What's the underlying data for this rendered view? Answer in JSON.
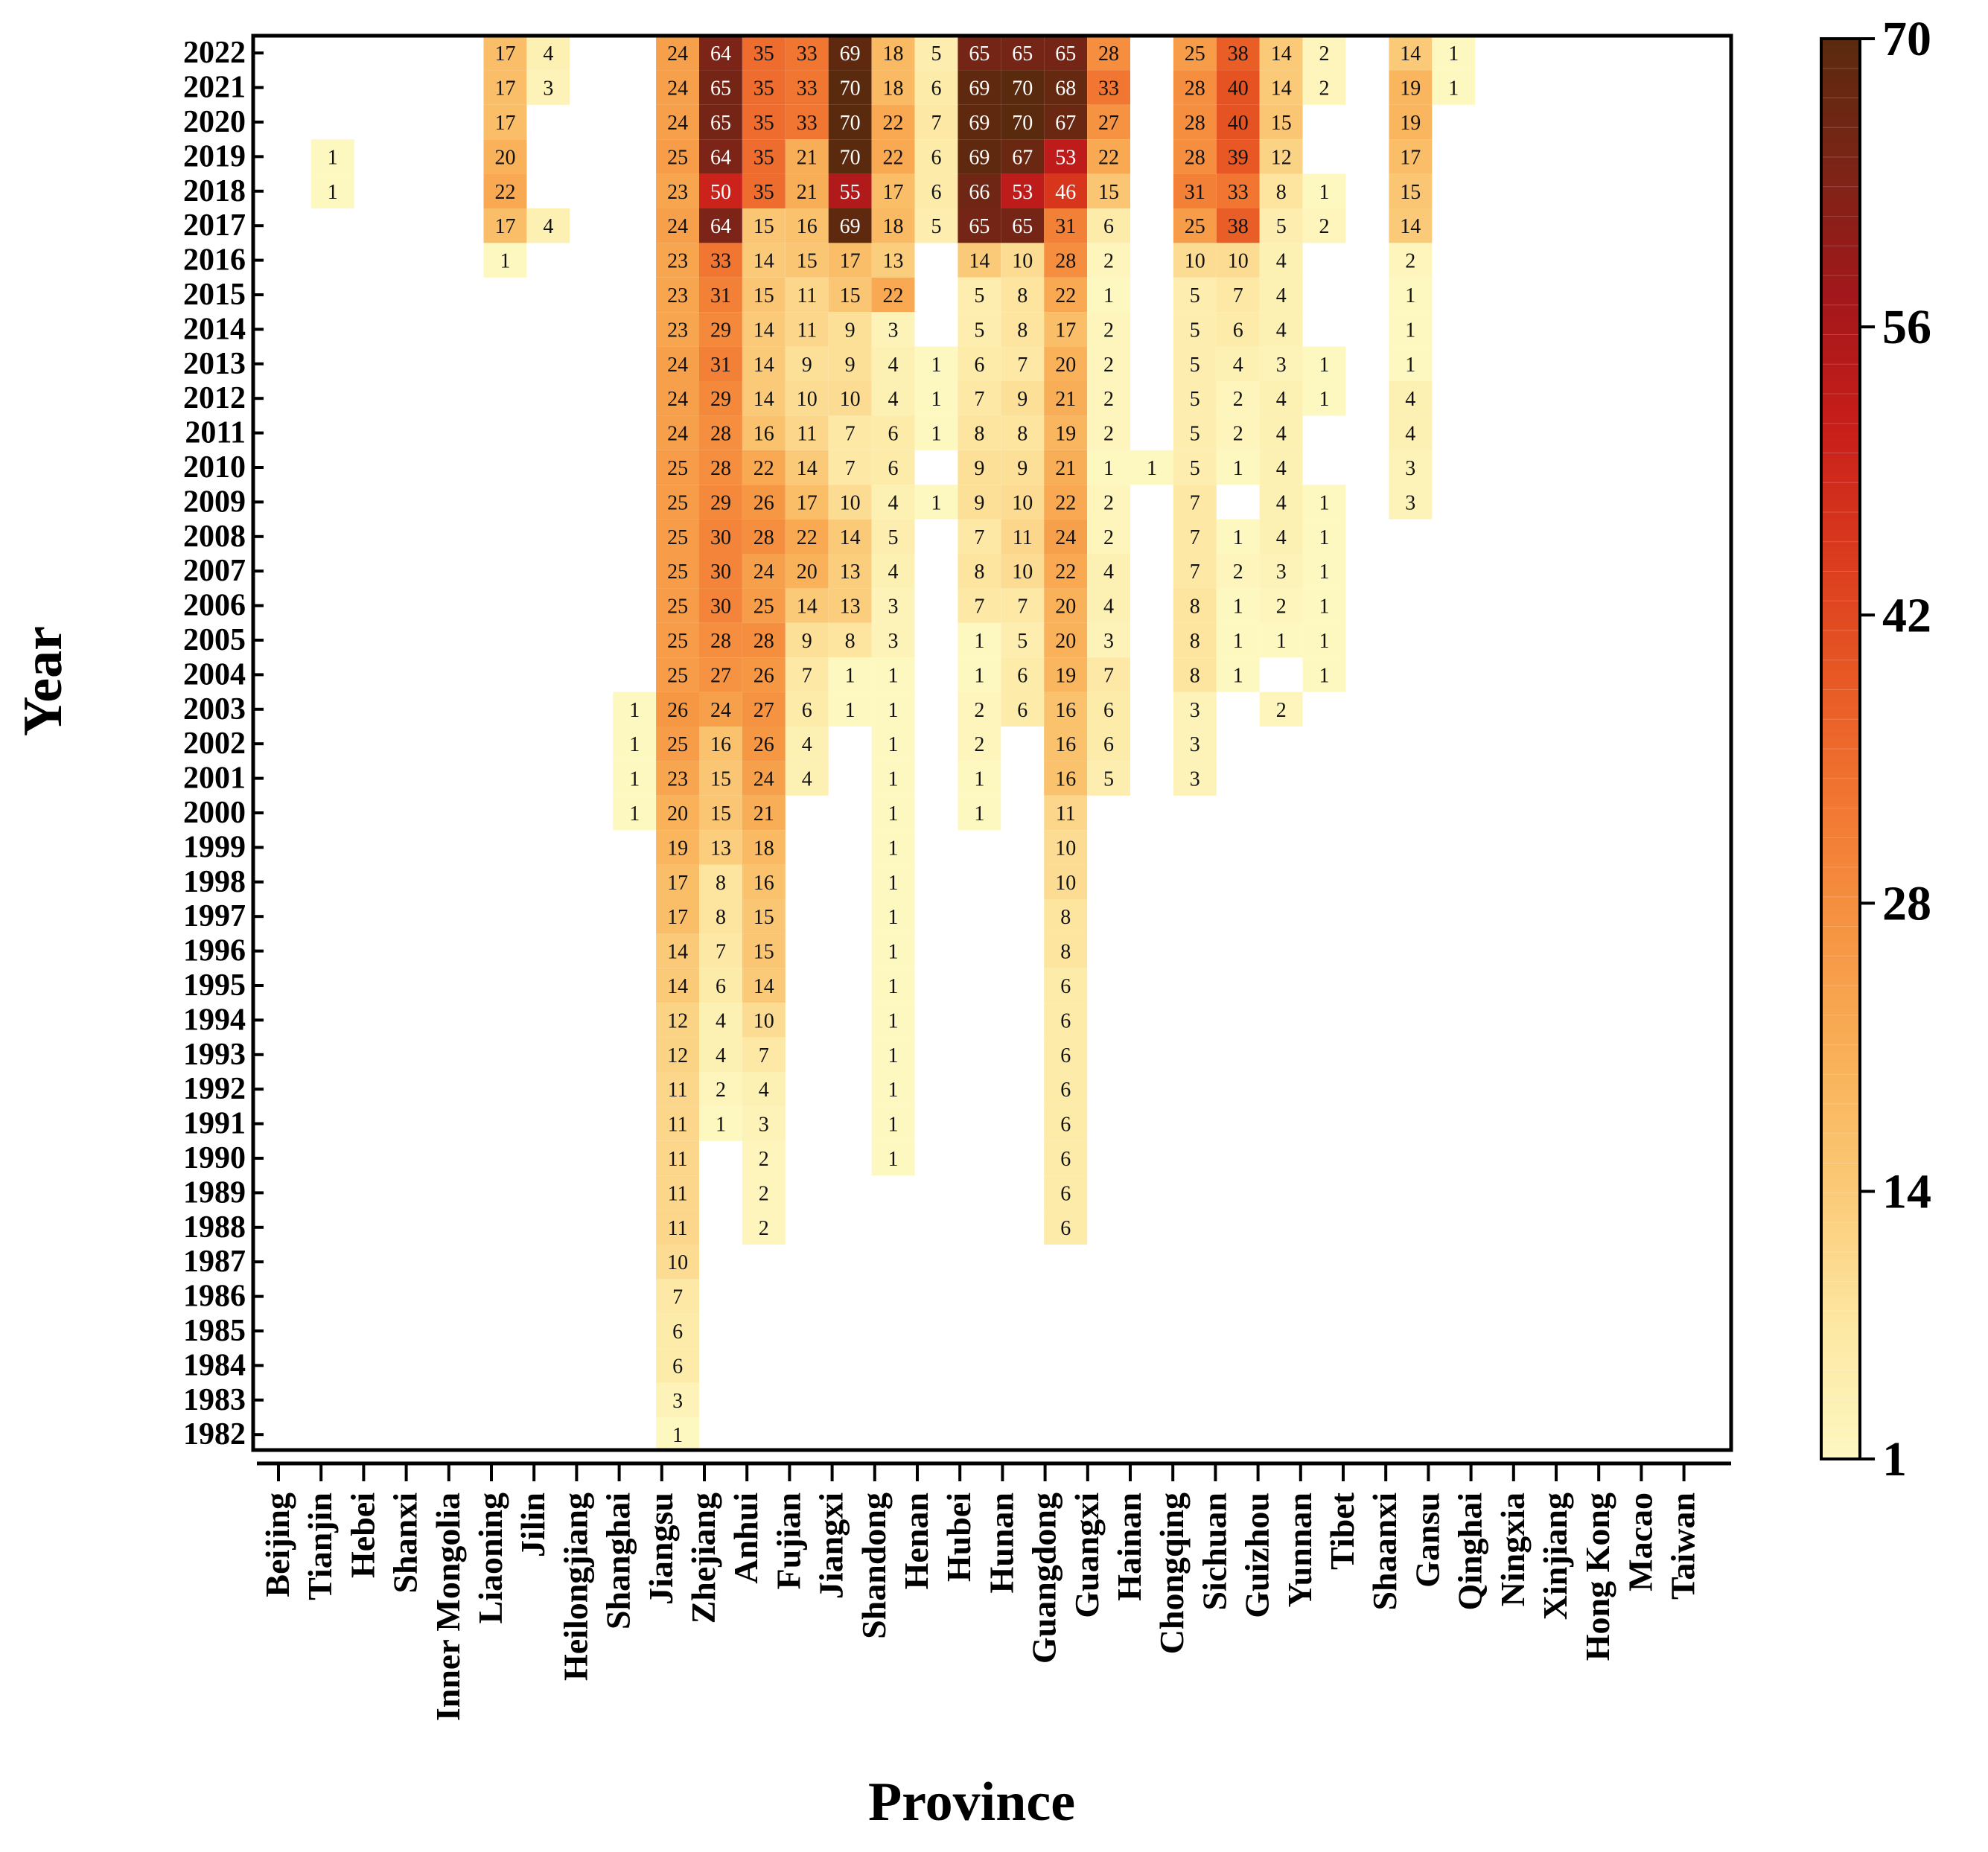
{
  "chart_data": {
    "type": "heatmap",
    "title": "",
    "xlabel": "Province",
    "ylabel": "Year",
    "provinces": [
      "Beijing",
      "Tianjin",
      "Hebei",
      "Shanxi",
      "Inner Mongolia",
      "Liaoning",
      "Jilin",
      "Heilongjiang",
      "Shanghai",
      "Jiangsu",
      "Zhejiang",
      "Anhui",
      "Fujian",
      "Jiangxi",
      "Shandong",
      "Henan",
      "Hubei",
      "Hunan",
      "Guangdong",
      "Guangxi",
      "Hainan",
      "Chongqing",
      "Sichuan",
      "Guizhou",
      "Yunnan",
      "Tibet",
      "Shaanxi",
      "Gansu",
      "Qinghai",
      "Ningxia",
      "Xinjiang",
      "Hong Kong",
      "Macao",
      "Taiwan"
    ],
    "years": [
      2022,
      2021,
      2020,
      2019,
      2018,
      2017,
      2016,
      2015,
      2014,
      2013,
      2012,
      2011,
      2010,
      2009,
      2008,
      2007,
      2006,
      2005,
      2004,
      2003,
      2002,
      2001,
      2000,
      1999,
      1998,
      1997,
      1996,
      1995,
      1994,
      1993,
      1992,
      1991,
      1990,
      1989,
      1988,
      1987,
      1986,
      1985,
      1984,
      1983,
      1982
    ],
    "colorbar": {
      "min": 1,
      "max": 70,
      "ticks": [
        1,
        14,
        28,
        42,
        56,
        70
      ]
    },
    "colormap_stops": [
      "#fdf7c0",
      "#fde8a4",
      "#fbcc7a",
      "#f9b35a",
      "#f69744",
      "#f27933",
      "#e85a25",
      "#da3b1e",
      "#c81e1a",
      "#a3171b",
      "#7c2417",
      "#5a2a0e"
    ],
    "values": {
      "Tianjin": {
        "2019": 1,
        "2018": 1
      },
      "Liaoning": {
        "2022": 17,
        "2021": 17,
        "2020": 17,
        "2019": 20,
        "2018": 22,
        "2017": 17,
        "2016": 1
      },
      "Jilin": {
        "2022": 4,
        "2021": 3,
        "2017": 4
      },
      "Shanghai": {
        "2003": 1,
        "2002": 1,
        "2001": 1,
        "2000": 1
      },
      "Jiangsu": {
        "2022": 24,
        "2021": 24,
        "2020": 24,
        "2019": 25,
        "2018": 23,
        "2017": 24,
        "2016": 23,
        "2015": 23,
        "2014": 23,
        "2013": 24,
        "2012": 24,
        "2011": 24,
        "2010": 25,
        "2009": 25,
        "2008": 25,
        "2007": 25,
        "2006": 25,
        "2005": 25,
        "2004": 25,
        "2003": 26,
        "2002": 25,
        "2001": 23,
        "2000": 20,
        "1999": 19,
        "1998": 17,
        "1997": 17,
        "1996": 14,
        "1995": 14,
        "1994": 12,
        "1993": 12,
        "1992": 11,
        "1991": 11,
        "1990": 11,
        "1989": 11,
        "1988": 11,
        "1987": 10,
        "1986": 7,
        "1985": 6,
        "1984": 6,
        "1983": 3,
        "1982": 1
      },
      "Zhejiang": {
        "2022": 64,
        "2021": 65,
        "2020": 65,
        "2019": 64,
        "2018": 50,
        "2017": 64,
        "2016": 33,
        "2015": 31,
        "2014": 29,
        "2013": 31,
        "2012": 29,
        "2011": 28,
        "2010": 28,
        "2009": 29,
        "2008": 30,
        "2007": 30,
        "2006": 30,
        "2005": 28,
        "2004": 27,
        "2003": 24,
        "2002": 16,
        "2001": 15,
        "2000": 15,
        "1999": 13,
        "1998": 8,
        "1997": 8,
        "1996": 7,
        "1995": 6,
        "1994": 4,
        "1993": 4,
        "1992": 2,
        "1991": 1
      },
      "Anhui": {
        "2022": 35,
        "2021": 35,
        "2020": 35,
        "2019": 35,
        "2018": 35,
        "2017": 15,
        "2016": 14,
        "2015": 15,
        "2014": 14,
        "2013": 14,
        "2012": 14,
        "2011": 16,
        "2010": 22,
        "2009": 26,
        "2008": 28,
        "2007": 24,
        "2006": 25,
        "2005": 28,
        "2004": 26,
        "2003": 27,
        "2002": 26,
        "2001": 24,
        "2000": 21,
        "1999": 18,
        "1998": 16,
        "1997": 15,
        "1996": 15,
        "1995": 14,
        "1994": 10,
        "1993": 7,
        "1992": 4,
        "1991": 3,
        "1990": 2,
        "1989": 2,
        "1988": 2
      },
      "Fujian": {
        "2022": 33,
        "2021": 33,
        "2020": 33,
        "2019": 21,
        "2018": 21,
        "2017": 16,
        "2016": 15,
        "2015": 11,
        "2014": 11,
        "2013": 9,
        "2012": 10,
        "2011": 11,
        "2010": 14,
        "2009": 17,
        "2008": 22,
        "2007": 20,
        "2006": 14,
        "2005": 9,
        "2004": 7,
        "2003": 6,
        "2002": 4,
        "2001": 4
      },
      "Jiangxi": {
        "2022": 69,
        "2021": 70,
        "2020": 70,
        "2019": 70,
        "2018": 55,
        "2017": 69,
        "2016": 17,
        "2015": 15,
        "2014": 9,
        "2013": 9,
        "2012": 10,
        "2011": 7,
        "2010": 7,
        "2009": 10,
        "2008": 14,
        "2007": 13,
        "2006": 13,
        "2005": 8,
        "2004": 1,
        "2003": 1
      },
      "Shandong": {
        "2022": 18,
        "2021": 18,
        "2020": 22,
        "2019": 22,
        "2018": 17,
        "2017": 18,
        "2016": 13,
        "2015": 22,
        "2014": 3,
        "2013": 4,
        "2012": 4,
        "2011": 6,
        "2010": 6,
        "2009": 4,
        "2008": 5,
        "2007": 4,
        "2006": 3,
        "2005": 3,
        "2004": 1,
        "2003": 1,
        "2002": 1,
        "2001": 1,
        "2000": 1,
        "1999": 1,
        "1998": 1,
        "1997": 1,
        "1996": 1,
        "1995": 1,
        "1994": 1,
        "1993": 1,
        "1992": 1,
        "1991": 1,
        "1990": 1
      },
      "Henan": {
        "2022": 5,
        "2021": 6,
        "2020": 7,
        "2019": 6,
        "2018": 6,
        "2017": 5,
        "2013": 1,
        "2012": 1,
        "2011": 1,
        "2009": 1
      },
      "Hubei": {
        "2022": 65,
        "2021": 69,
        "2020": 69,
        "2019": 69,
        "2018": 66,
        "2017": 65,
        "2016": 14,
        "2015": 5,
        "2014": 5,
        "2013": 6,
        "2012": 7,
        "2011": 8,
        "2010": 9,
        "2009": 9,
        "2008": 7,
        "2007": 8,
        "2006": 7,
        "2005": 1,
        "2004": 1,
        "2003": 2,
        "2002": 2,
        "2001": 1,
        "2000": 1
      },
      "Hunan": {
        "2022": 65,
        "2021": 70,
        "2020": 70,
        "2019": 67,
        "2018": 53,
        "2017": 65,
        "2016": 10,
        "2015": 8,
        "2014": 8,
        "2013": 7,
        "2012": 9,
        "2011": 8,
        "2010": 9,
        "2009": 10,
        "2008": 11,
        "2007": 10,
        "2006": 7,
        "2005": 5,
        "2004": 6,
        "2003": 6
      },
      "Guangdong": {
        "2022": 65,
        "2021": 68,
        "2020": 67,
        "2019": 53,
        "2018": 46,
        "2017": 31,
        "2016": 28,
        "2015": 22,
        "2014": 17,
        "2013": 20,
        "2012": 21,
        "2011": 19,
        "2010": 21,
        "2009": 22,
        "2008": 24,
        "2007": 22,
        "2006": 20,
        "2005": 20,
        "2004": 19,
        "2003": 16,
        "2002": 16,
        "2001": 16,
        "2000": 11,
        "1999": 10,
        "1998": 10,
        "1997": 8,
        "1996": 8,
        "1995": 6,
        "1994": 6,
        "1993": 6,
        "1992": 6,
        "1991": 6,
        "1990": 6,
        "1989": 6,
        "1988": 6
      },
      "Guangxi": {
        "2022": 28,
        "2021": 33,
        "2020": 27,
        "2019": 22,
        "2018": 15,
        "2017": 6,
        "2016": 2,
        "2015": 1,
        "2014": 2,
        "2013": 2,
        "2012": 2,
        "2011": 2,
        "2010": 1,
        "2009": 2,
        "2008": 2,
        "2007": 4,
        "2006": 4,
        "2005": 3,
        "2004": 7,
        "2003": 6,
        "2002": 6,
        "2001": 5
      },
      "Hainan": {
        "2010": 1
      },
      "Chongqing": {
        "2022": 25,
        "2021": 28,
        "2020": 28,
        "2019": 28,
        "2018": 31,
        "2017": 25,
        "2016": 10,
        "2015": 5,
        "2014": 5,
        "2013": 5,
        "2012": 5,
        "2011": 5,
        "2010": 5,
        "2009": 7,
        "2008": 7,
        "2007": 7,
        "2006": 8,
        "2005": 8,
        "2004": 8,
        "2003": 3,
        "2002": 3,
        "2001": 3
      },
      "Sichuan": {
        "2022": 38,
        "2021": 40,
        "2020": 40,
        "2019": 39,
        "2018": 33,
        "2017": 38,
        "2016": 10,
        "2015": 7,
        "2014": 6,
        "2013": 4,
        "2012": 2,
        "2011": 2,
        "2010": 1,
        "2008": 1,
        "2007": 2,
        "2006": 1,
        "2005": 1,
        "2004": 1
      },
      "Guizhou": {
        "2022": 14,
        "2021": 14,
        "2020": 15,
        "2019": 12,
        "2018": 8,
        "2017": 5,
        "2016": 4,
        "2015": 4,
        "2014": 4,
        "2013": 3,
        "2012": 4,
        "2011": 4,
        "2010": 4,
        "2009": 4,
        "2008": 4,
        "2007": 3,
        "2006": 2,
        "2005": 1,
        "2003": 2
      },
      "Yunnan": {
        "2022": 2,
        "2021": 2,
        "2018": 1,
        "2017": 2,
        "2013": 1,
        "2012": 1,
        "2009": 1,
        "2008": 1,
        "2007": 1,
        "2006": 1,
        "2005": 1,
        "2004": 1
      },
      "Shaanxi": {
        "2022": 14,
        "2021": 19,
        "2020": 19,
        "2019": 17,
        "2018": 15,
        "2017": 14,
        "2016": 2,
        "2015": 1,
        "2014": 1,
        "2013": 1,
        "2012": 4,
        "2011": 4,
        "2010": 3,
        "2009": 3
      },
      "Gansu": {
        "2022": 1,
        "2021": 1
      }
    }
  }
}
